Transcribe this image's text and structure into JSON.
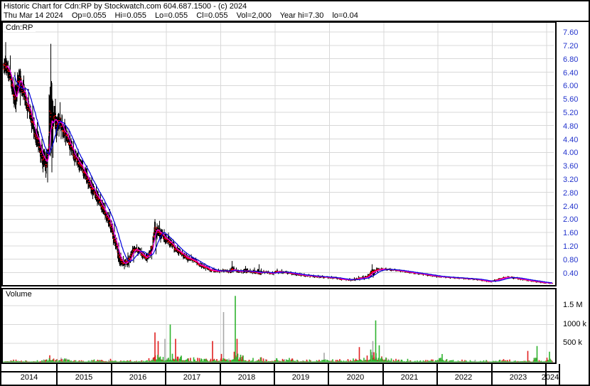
{
  "header": {
    "title": "Historic Chart for Cdn:RP by Stockwatch.com 604.687.1500 - (c) 2024",
    "quote": {
      "date": "Thu Mar 14 2024",
      "op": "Op=0.055",
      "hi": "Hi=0.055",
      "lo": "Lo=0.055",
      "cl": "Cl=0.055",
      "vol": "Vol=2,000",
      "year_hi": "Year hi=7.30",
      "year_lo": "lo=0.04"
    }
  },
  "price_panel": {
    "symbol_label": "Cdn:RP"
  },
  "volume_panel": {
    "label": "Volume"
  },
  "colors": {
    "price_bar": "#000000",
    "close_tick": "#ff0000",
    "ma_short": "#ff00ff",
    "ma_long": "#0000dd",
    "grid": "#d8d8d8",
    "price_axis_text": "#2233cc",
    "vol_up": "#2fb32f",
    "vol_down": "#e02020",
    "vol_neutral": "#a8a8a8"
  },
  "chart_data": {
    "type": "ohlc-bar-with-volume",
    "title": "Cdn:RP",
    "x_range_years": [
      2014.0,
      2024.2
    ],
    "x_tick_years": [
      "2014",
      "2015",
      "2016",
      "2017",
      "2018",
      "2019",
      "2020",
      "2021",
      "2022",
      "2023",
      "2024"
    ],
    "price_axis": {
      "labels": [
        "7.60",
        "7.20",
        "6.80",
        "6.40",
        "6.00",
        "5.60",
        "5.20",
        "4.80",
        "4.40",
        "4.00",
        "3.60",
        "3.20",
        "2.80",
        "2.40",
        "2.00",
        "1.60",
        "1.20",
        "0.80",
        "0.40"
      ],
      "values": [
        7.6,
        7.2,
        6.8,
        6.4,
        6.0,
        5.6,
        5.2,
        4.8,
        4.4,
        4.0,
        3.6,
        3.2,
        2.8,
        2.4,
        2.0,
        1.6,
        1.2,
        0.8,
        0.4
      ],
      "grid": true
    },
    "volume_axis": {
      "labels": [
        "1.5 M",
        "1000 k",
        "500 k"
      ],
      "values_k": [
        1500,
        1000,
        500
      ],
      "grid": true
    },
    "series": {
      "price_monthly": {
        "start": "2014-01",
        "fields": [
          "high",
          "low",
          "close"
        ],
        "points": [
          [
            7.3,
            6.3,
            6.6
          ],
          [
            6.9,
            5.9,
            6.3
          ],
          [
            6.4,
            5.2,
            5.6
          ],
          [
            6.5,
            5.4,
            6.2
          ],
          [
            6.3,
            5.4,
            5.8
          ],
          [
            5.9,
            5.0,
            5.3
          ],
          [
            5.4,
            4.4,
            4.8
          ],
          [
            4.9,
            4.0,
            4.4
          ],
          [
            4.4,
            3.4,
            3.9
          ],
          [
            4.1,
            3.1,
            3.6
          ],
          [
            7.25,
            3.4,
            5.2
          ],
          [
            5.6,
            4.3,
            5.0
          ],
          [
            5.5,
            4.4,
            4.9
          ],
          [
            5.0,
            4.2,
            4.6
          ],
          [
            4.7,
            3.9,
            4.3
          ],
          [
            4.4,
            3.6,
            4.0
          ],
          [
            4.1,
            3.4,
            3.7
          ],
          [
            3.8,
            3.2,
            3.5
          ],
          [
            3.6,
            2.9,
            3.2
          ],
          [
            3.3,
            2.6,
            2.9
          ],
          [
            3.0,
            2.4,
            2.7
          ],
          [
            2.8,
            2.2,
            2.5
          ],
          [
            2.5,
            1.9,
            2.2
          ],
          [
            2.3,
            1.6,
            1.9
          ],
          [
            1.9,
            1.1,
            1.4
          ],
          [
            1.3,
            0.6,
            0.9
          ],
          [
            0.9,
            0.5,
            0.65
          ],
          [
            1.0,
            0.55,
            0.75
          ],
          [
            1.2,
            0.7,
            1.0
          ],
          [
            1.25,
            0.9,
            1.1
          ],
          [
            1.15,
            0.8,
            0.95
          ],
          [
            1.0,
            0.7,
            0.85
          ],
          [
            1.2,
            0.8,
            1.0
          ],
          [
            2.0,
            0.95,
            1.7
          ],
          [
            1.95,
            1.3,
            1.6
          ],
          [
            1.7,
            1.25,
            1.45
          ],
          [
            1.6,
            1.15,
            1.35
          ],
          [
            1.4,
            1.0,
            1.2
          ],
          [
            1.25,
            0.9,
            1.05
          ],
          [
            1.1,
            0.8,
            0.95
          ],
          [
            1.0,
            0.7,
            0.85
          ],
          [
            0.95,
            0.7,
            0.8
          ],
          [
            0.85,
            0.62,
            0.72
          ],
          [
            0.75,
            0.52,
            0.62
          ],
          [
            0.68,
            0.46,
            0.55
          ],
          [
            0.6,
            0.42,
            0.5
          ],
          [
            0.55,
            0.4,
            0.46
          ],
          [
            0.52,
            0.38,
            0.44
          ],
          [
            0.52,
            0.4,
            0.46
          ],
          [
            0.5,
            0.38,
            0.44
          ],
          [
            0.75,
            0.4,
            0.48
          ],
          [
            0.55,
            0.4,
            0.45
          ],
          [
            0.5,
            0.37,
            0.43
          ],
          [
            0.6,
            0.38,
            0.45
          ],
          [
            0.52,
            0.38,
            0.44
          ],
          [
            0.55,
            0.36,
            0.42
          ],
          [
            0.65,
            0.34,
            0.4
          ],
          [
            0.48,
            0.36,
            0.42
          ],
          [
            0.46,
            0.34,
            0.4
          ],
          [
            0.44,
            0.32,
            0.38
          ],
          [
            0.52,
            0.36,
            0.44
          ],
          [
            0.5,
            0.36,
            0.42
          ],
          [
            0.46,
            0.34,
            0.4
          ],
          [
            0.44,
            0.32,
            0.38
          ],
          [
            0.42,
            0.3,
            0.36
          ],
          [
            0.4,
            0.28,
            0.34
          ],
          [
            0.38,
            0.27,
            0.32
          ],
          [
            0.36,
            0.25,
            0.3
          ],
          [
            0.34,
            0.24,
            0.29
          ],
          [
            0.33,
            0.23,
            0.28
          ],
          [
            0.32,
            0.22,
            0.27
          ],
          [
            0.3,
            0.21,
            0.26
          ],
          [
            0.3,
            0.2,
            0.25
          ],
          [
            0.28,
            0.19,
            0.24
          ],
          [
            0.26,
            0.16,
            0.21
          ],
          [
            0.23,
            0.15,
            0.19
          ],
          [
            0.24,
            0.14,
            0.18
          ],
          [
            0.26,
            0.15,
            0.2
          ],
          [
            0.3,
            0.16,
            0.22
          ],
          [
            0.32,
            0.18,
            0.24
          ],
          [
            0.36,
            0.2,
            0.28
          ],
          [
            0.65,
            0.25,
            0.42
          ],
          [
            0.56,
            0.38,
            0.48
          ],
          [
            0.55,
            0.44,
            0.5
          ],
          [
            0.55,
            0.45,
            0.5
          ],
          [
            0.54,
            0.44,
            0.49
          ],
          [
            0.52,
            0.43,
            0.48
          ],
          [
            0.5,
            0.41,
            0.46
          ],
          [
            0.48,
            0.39,
            0.44
          ],
          [
            0.46,
            0.37,
            0.42
          ],
          [
            0.44,
            0.35,
            0.4
          ],
          [
            0.42,
            0.33,
            0.38
          ],
          [
            0.4,
            0.31,
            0.36
          ],
          [
            0.38,
            0.29,
            0.34
          ],
          [
            0.36,
            0.27,
            0.32
          ],
          [
            0.34,
            0.25,
            0.3
          ],
          [
            0.32,
            0.24,
            0.28
          ],
          [
            0.3,
            0.23,
            0.27
          ],
          [
            0.29,
            0.22,
            0.26
          ],
          [
            0.28,
            0.21,
            0.25
          ],
          [
            0.27,
            0.2,
            0.24
          ],
          [
            0.26,
            0.19,
            0.23
          ],
          [
            0.25,
            0.18,
            0.22
          ],
          [
            0.24,
            0.17,
            0.21
          ],
          [
            0.23,
            0.16,
            0.2
          ],
          [
            0.21,
            0.14,
            0.18
          ],
          [
            0.18,
            0.12,
            0.15
          ],
          [
            0.16,
            0.1,
            0.13
          ],
          [
            0.2,
            0.12,
            0.16
          ],
          [
            0.24,
            0.15,
            0.2
          ],
          [
            0.28,
            0.19,
            0.24
          ],
          [
            0.3,
            0.21,
            0.26
          ],
          [
            0.29,
            0.2,
            0.25
          ],
          [
            0.27,
            0.18,
            0.23
          ],
          [
            0.25,
            0.16,
            0.21
          ],
          [
            0.22,
            0.14,
            0.18
          ],
          [
            0.2,
            0.12,
            0.16
          ],
          [
            0.18,
            0.1,
            0.14
          ],
          [
            0.16,
            0.08,
            0.12
          ],
          [
            0.14,
            0.07,
            0.1
          ],
          [
            0.12,
            0.06,
            0.09
          ],
          [
            0.1,
            0.05,
            0.07
          ],
          [
            0.08,
            0.04,
            0.055
          ]
        ]
      },
      "volume_monthly_typical_k": [
        60,
        50,
        80,
        60,
        50,
        40,
        50,
        60,
        80,
        120,
        200,
        150,
        150,
        100,
        80,
        60,
        70,
        60,
        50,
        60,
        80,
        70,
        90,
        110,
        100,
        80,
        120,
        90,
        70,
        60,
        50,
        70,
        150,
        300,
        250,
        200,
        350,
        250,
        200,
        180,
        160,
        150,
        130,
        120,
        100,
        90,
        150,
        120,
        250,
        150,
        200,
        300,
        200,
        150,
        100,
        120,
        150,
        100,
        80,
        70,
        120,
        100,
        80,
        150,
        100,
        80,
        60,
        80,
        60,
        70,
        120,
        80,
        80,
        70,
        100,
        80,
        120,
        100,
        180,
        150,
        200,
        350,
        250,
        200,
        150,
        120,
        100,
        80,
        70,
        90,
        60,
        70,
        50,
        60,
        80,
        70,
        250,
        100,
        80,
        70,
        60,
        80,
        50,
        60,
        70,
        50,
        60,
        40,
        60,
        80,
        100,
        70,
        60,
        50,
        60,
        40,
        50,
        120,
        80,
        60,
        150,
        120,
        60
      ],
      "volume_spikes_k": [
        {
          "t": 2016.79,
          "v": 790,
          "color": "down"
        },
        {
          "t": 2016.85,
          "v": 560,
          "color": "down"
        },
        {
          "t": 2016.97,
          "v": 620,
          "color": "neutral"
        },
        {
          "t": 2017.07,
          "v": 1000,
          "color": "up"
        },
        {
          "t": 2017.17,
          "v": 620,
          "color": "down"
        },
        {
          "t": 2017.85,
          "v": 560,
          "color": "down"
        },
        {
          "t": 2018.05,
          "v": 1330,
          "color": "neutral"
        },
        {
          "t": 2018.27,
          "v": 1760,
          "color": "up"
        },
        {
          "t": 2018.3,
          "v": 620,
          "color": "down"
        },
        {
          "t": 2019.9,
          "v": 250,
          "color": "neutral"
        },
        {
          "t": 2020.55,
          "v": 400,
          "color": "down"
        },
        {
          "t": 2020.8,
          "v": 560,
          "color": "neutral"
        },
        {
          "t": 2020.85,
          "v": 1110,
          "color": "up"
        },
        {
          "t": 2020.92,
          "v": 450,
          "color": "up"
        },
        {
          "t": 2023.65,
          "v": 300,
          "color": "down"
        },
        {
          "t": 2023.82,
          "v": 430,
          "color": "up"
        },
        {
          "t": 2024.05,
          "v": 280,
          "color": "up"
        }
      ],
      "moving_averages": [
        {
          "name": "short",
          "period_days": 15,
          "color_key": "ma_short"
        },
        {
          "name": "long",
          "period_days": 50,
          "color_key": "ma_long"
        }
      ]
    },
    "last_bar": {
      "date": "Thu Mar 14 2024",
      "open": 0.055,
      "high": 0.055,
      "low": 0.055,
      "close": 0.055,
      "volume": 2000,
      "year_high": 7.3,
      "year_low": 0.04
    }
  }
}
